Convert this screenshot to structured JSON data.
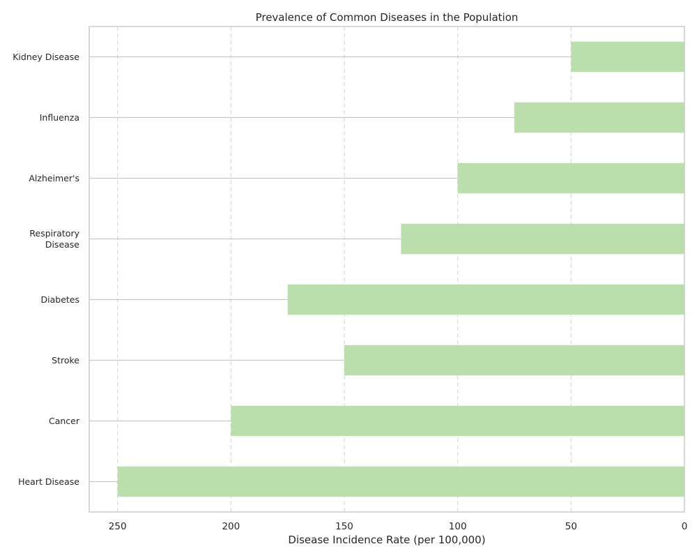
{
  "chart_data": {
    "type": "bar",
    "orientation": "horizontal",
    "x_axis_inverted": true,
    "title": "Prevalence of Common Diseases in the Population",
    "xlabel": "Disease Incidence Rate (per 100,000)",
    "ylabel": "",
    "categories": [
      "Heart Disease",
      "Cancer",
      "Stroke",
      "Diabetes",
      "Respiratory\nDisease",
      "Alzheimer's",
      "Influenza",
      "Kidney Disease"
    ],
    "values": [
      250,
      200,
      150,
      175,
      125,
      100,
      75,
      50
    ],
    "xlim": [
      262.5,
      0
    ],
    "xticks": [
      250,
      200,
      150,
      100,
      50,
      0
    ],
    "grid": "x-dashed",
    "colors": {
      "bar": "#badeac",
      "grid": "#d9d9d9",
      "leader": "#c6c6c6",
      "frame": "#cccccc",
      "text": "#262626"
    }
  }
}
